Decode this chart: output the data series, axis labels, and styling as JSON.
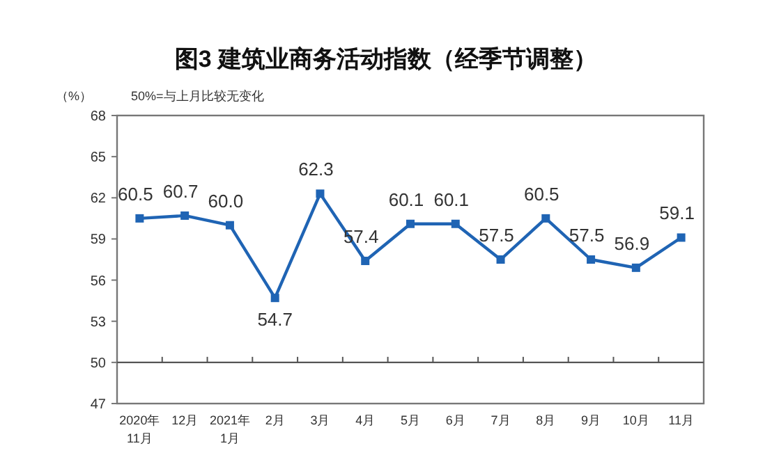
{
  "chart_data": {
    "type": "line",
    "title": "图3  建筑业商务活动指数（经季节调整）",
    "ylabel": "（%）",
    "annotations": [
      "50%=与上月比较无变化"
    ],
    "categories": [
      "2020年\n11月",
      "12月",
      "2021年\n1月",
      "2月",
      "3月",
      "4月",
      "5月",
      "6月",
      "7月",
      "8月",
      "9月",
      "10月",
      "11月"
    ],
    "series": [
      {
        "color": "#1f64b4",
        "values": [
          60.5,
          60.7,
          60.0,
          54.7,
          62.3,
          57.4,
          60.1,
          60.1,
          57.5,
          60.5,
          57.5,
          56.9,
          59.1
        ],
        "value_labels": [
          "60.5",
          "60.7",
          "60.0",
          "54.7",
          "62.3",
          "57.4",
          "60.1",
          "60.1",
          "57.5",
          "60.5",
          "57.5",
          "56.9",
          "59.1"
        ]
      }
    ],
    "ylim": [
      47,
      68
    ],
    "yticks": [
      47,
      50,
      53,
      56,
      59,
      62,
      65,
      68
    ],
    "ref_lines": [
      {
        "axis": "y",
        "value": 50,
        "color": "#555555"
      }
    ],
    "marker": "square",
    "line_style": "solid",
    "grid": false
  }
}
